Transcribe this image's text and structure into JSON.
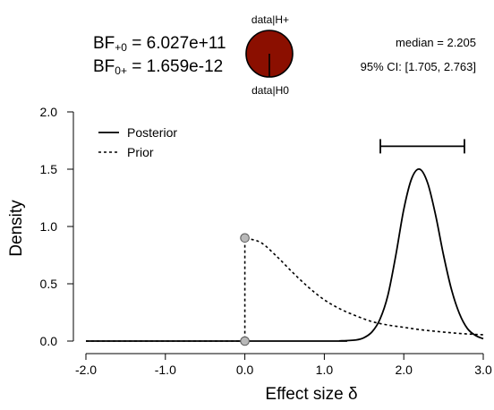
{
  "header": {
    "bf10": {
      "prefix": "BF",
      "sub": "+0",
      "value": " = 6.027e+11"
    },
    "bf01": {
      "prefix": "BF",
      "sub": "0+",
      "value": " = 1.659e-12"
    },
    "wheel": {
      "top_label": "data|H+",
      "bottom_label": "data|H0",
      "fill_color": "#8B0F00",
      "h0_fraction": 0.0
    },
    "median_text": "median = 2.205",
    "ci_text": "95% CI: [1.705, 2.763]"
  },
  "chart_data": {
    "type": "line",
    "xlabel": "Effect size δ",
    "ylabel": "Density",
    "xlim": [
      -2.0,
      3.0
    ],
    "ylim": [
      0.0,
      2.0
    ],
    "xticks": [
      -2.0,
      -1.0,
      0.0,
      1.0,
      2.0,
      3.0
    ],
    "xtick_labels": [
      "-2.0",
      "-1.0",
      "0.0",
      "1.0",
      "2.0",
      "3.0"
    ],
    "yticks": [
      0.0,
      0.5,
      1.0,
      1.5,
      2.0
    ],
    "ytick_labels": [
      "0.0",
      "0.5",
      "1.0",
      "1.5",
      "2.0"
    ],
    "grid": false,
    "legend": {
      "placement": "top-left",
      "entries": [
        {
          "name": "Posterior",
          "style": "solid"
        },
        {
          "name": "Prior",
          "style": "dotted"
        }
      ]
    },
    "series": [
      {
        "name": "Posterior",
        "style": "solid",
        "x": [
          -2.0,
          1.0,
          1.2,
          1.4,
          1.5,
          1.6,
          1.7,
          1.8,
          1.9,
          2.0,
          2.1,
          2.2,
          2.3,
          2.4,
          2.5,
          2.6,
          2.7,
          2.8,
          2.9,
          3.0
        ],
        "y": [
          0.0,
          0.0,
          0.002,
          0.01,
          0.03,
          0.08,
          0.19,
          0.4,
          0.75,
          1.15,
          1.42,
          1.5,
          1.38,
          1.1,
          0.75,
          0.45,
          0.24,
          0.11,
          0.05,
          0.02
        ]
      },
      {
        "name": "Prior",
        "style": "dotted",
        "x": [
          -2.0,
          0.0,
          0.0,
          0.2,
          0.4,
          0.6,
          0.8,
          1.0,
          1.2,
          1.4,
          1.6,
          1.8,
          2.0,
          2.2,
          2.4,
          2.6,
          2.8,
          3.0
        ],
        "y": [
          0.0,
          0.0,
          0.9,
          0.86,
          0.74,
          0.6,
          0.47,
          0.36,
          0.28,
          0.22,
          0.17,
          0.14,
          0.12,
          0.1,
          0.085,
          0.072,
          0.062,
          0.055
        ]
      }
    ],
    "points": [
      {
        "x": 0.0,
        "y": 0.9,
        "label": "prior density at 0"
      },
      {
        "x": 0.0,
        "y": 0.0,
        "label": "posterior density at 0"
      }
    ],
    "credible_interval": {
      "lower": 1.705,
      "upper": 2.763,
      "display_y": 1.7
    }
  }
}
